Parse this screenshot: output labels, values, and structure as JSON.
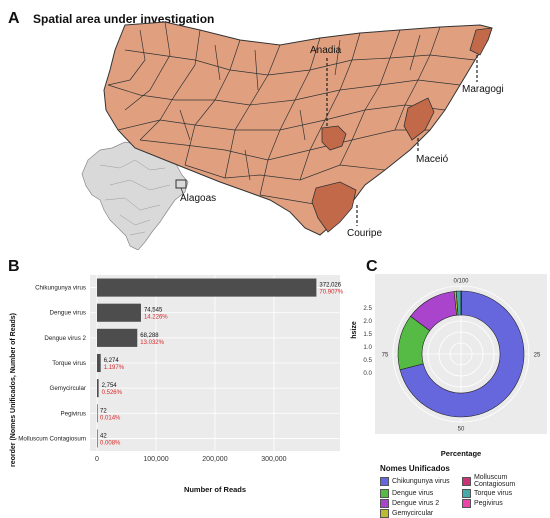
{
  "panel_a": {
    "letter": "A",
    "title": "Spatial area under investigation",
    "labels": {
      "anadia": "Anadia",
      "maragogi": "Maragogi",
      "maceio": "Maceió",
      "alagoas": "Alagoas",
      "couripe": "Couripe"
    },
    "colors": {
      "state_fill": "#e0a080",
      "highlight_fill": "#c2694a",
      "brazil_fill": "#d9d9d9"
    }
  },
  "panel_b": {
    "letter": "B",
    "chart_data": {
      "type": "bar",
      "orientation": "horizontal",
      "categories": [
        "Chikungunya virus",
        "Dengue virus",
        "Dengue virus 2",
        "Torque virus",
        "Gemycircular",
        "Pegivirus",
        "Molluscum Contagiosum"
      ],
      "values": [
        372026,
        74545,
        68288,
        6274,
        2754,
        72,
        42
      ],
      "value_labels": [
        "372,026",
        "74,545",
        "68,288",
        "6,274",
        "2,754",
        "72",
        "42"
      ],
      "percent_labels": [
        "70.907%",
        "14.226%",
        "13.032%",
        "1.197%",
        "0.526%",
        "0.014%",
        "0.008%"
      ],
      "xlabel": "Number of Reads",
      "ylabel": "reorder (Nomes Unificados, Number of Reads)",
      "xticks": [
        "0",
        "100,000",
        "200,000",
        "300,000"
      ],
      "xtick_values": [
        0,
        100000,
        200000,
        300000
      ],
      "xlim": [
        0,
        390000
      ],
      "colors": {
        "bar": "#4d4d4d",
        "percent_text": "#d62728",
        "panel_bg": "#ebebeb",
        "grid": "#ffffff"
      }
    }
  },
  "panel_c": {
    "letter": "C",
    "chart_data": {
      "type": "pie",
      "style": "donut-polar",
      "categories": [
        "Chikungunya virus",
        "Dengue virus",
        "Dengue virus 2",
        "Gemycircular",
        "Molluscum Contagiosum",
        "Torque virus",
        "Pegivirus"
      ],
      "values": [
        70.907,
        14.226,
        13.032,
        0.526,
        0.008,
        1.197,
        0.014
      ],
      "colors": [
        "#6666dd",
        "#55bb44",
        "#aa44cc",
        "#bbbb33",
        "#cc3377",
        "#44aaaa",
        "#ee44aa"
      ],
      "angle_ticks": [
        "0/100",
        "25",
        "50",
        "75"
      ],
      "ylabel": "hsize",
      "yticks": [
        "0.0",
        "0.5",
        "1.0",
        "1.5",
        "2.0",
        "2.5"
      ],
      "xlabel": "Percentage",
      "legend_title": "Nomes Unificados",
      "legend_items": [
        "Chikungunya virus",
        "Dengue virus",
        "Dengue virus 2",
        "Gemycircular",
        "Molluscum Contagiosum",
        "Torque virus",
        "Pegivirus"
      ],
      "legend_placement": "bottom",
      "panel_bg": "#ebebeb"
    }
  }
}
